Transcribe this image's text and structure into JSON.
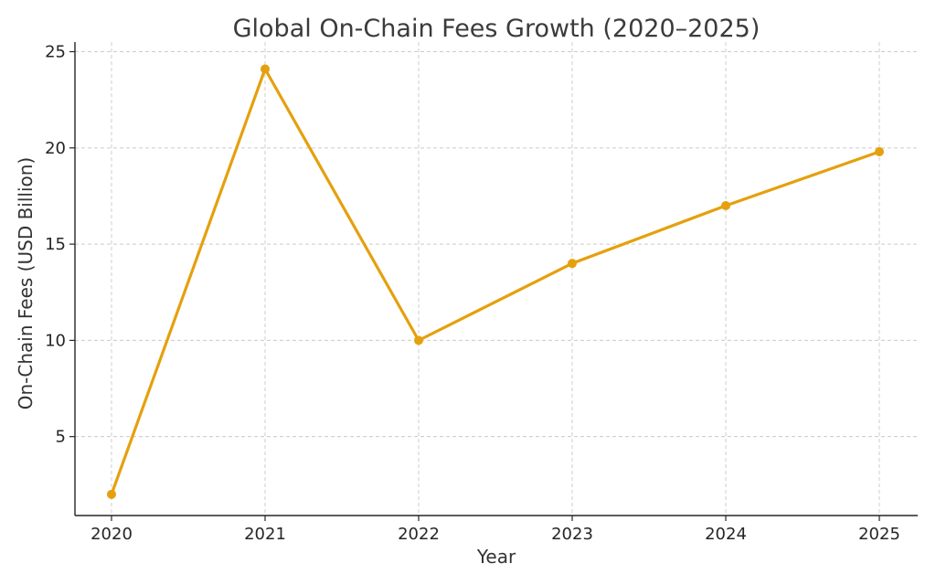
{
  "chart_data": {
    "type": "line",
    "title": "Global On-Chain Fees Growth (2020–2025)",
    "xlabel": "Year",
    "ylabel": "On-Chain Fees (USD Billion)",
    "categories": [
      "2020",
      "2021",
      "2022",
      "2023",
      "2024",
      "2025"
    ],
    "series": [
      {
        "name": "On-Chain Fees",
        "values": [
          2,
          24.1,
          10,
          14,
          17,
          19.8
        ],
        "color": "#E5A00D"
      }
    ],
    "yticks": [
      5,
      10,
      15,
      20,
      25
    ],
    "ylim": [
      0.9,
      25.5
    ],
    "grid": true
  }
}
